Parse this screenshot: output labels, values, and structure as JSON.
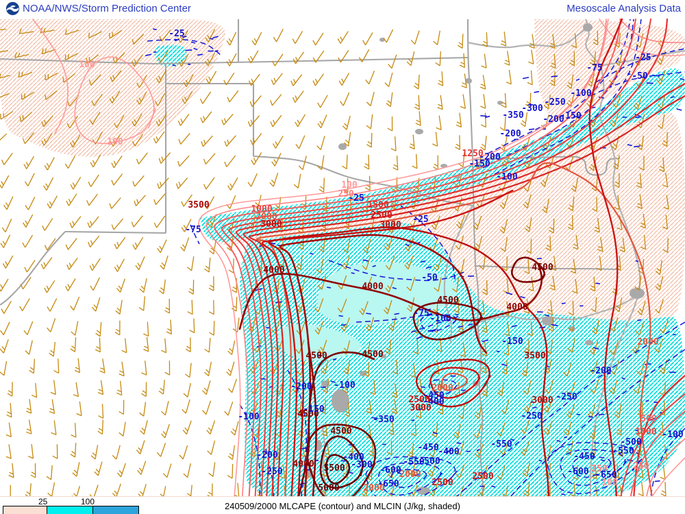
{
  "header": {
    "left_title": "NOAA/NWS/Storm Prediction Center",
    "right_title": "Mesoscale Analysis Data",
    "title_color": "#2b3cc0",
    "logo": "noaa-logo"
  },
  "footer": {
    "product_title": "240509/2000 MLCAPE (contour) and MLCIN (J/kg, shaded)",
    "legend": {
      "ticks": [
        "25",
        "100"
      ],
      "segment_colors": [
        "#fcdfd3",
        "#00f0f0",
        "#2da4dc"
      ]
    }
  },
  "map": {
    "colors": {
      "wind_barb": "#c6890f",
      "cin_line": "#1616d6",
      "cin_label": "#1414cc",
      "state_border": "#a6a6a6",
      "river": "#b3b3b3",
      "urban": "#a9a9a9",
      "shade_cyan_hatch": "#00dede",
      "shade_cyan_solid": "#b9f7f1",
      "shade_peach_hatch": "#f2c4b0",
      "cape_palette": {
        "100": "#ff9a9a",
        "250": "#ff8080",
        "500": "#f96060",
        "750": "#f24e4e",
        "1000": "#ec4040",
        "1250": "#e63434",
        "1500": "#e02c2c",
        "1750": "#da2424",
        "2000": "#e25840",
        "2500": "#cd1414",
        "3000": "#bc0c0c",
        "3500": "#a80505",
        "4000": "#930101",
        "4500": "#7d0000",
        "5000": "#6c0000",
        "5500": "#5e0000"
      }
    },
    "cape_labels": [
      [
        100,
        127,
        98
      ],
      [
        100,
        168,
        211
      ],
      [
        100,
        510,
        274
      ],
      [
        100,
        890,
        708
      ],
      [
        250,
        505,
        287
      ],
      [
        250,
        875,
        688
      ],
      [
        250,
        936,
        684
      ],
      [
        500,
        947,
        615
      ],
      [
        1000,
        943,
        634
      ],
      [
        1250,
        690,
        228
      ],
      [
        1500,
        552,
        303
      ],
      [
        1000,
        382,
        309
      ],
      [
        2000,
        389,
        320
      ],
      [
        3000,
        396,
        331
      ],
      [
        2000,
        646,
        570
      ],
      [
        2000,
        946,
        503
      ],
      [
        2000,
        599,
        696
      ],
      [
        2000,
        546,
        716
      ],
      [
        2500,
        557,
        318
      ],
      [
        2500,
        612,
        587
      ],
      [
        2500,
        646,
        708
      ],
      [
        2500,
        705,
        699
      ],
      [
        3000,
        570,
        332
      ],
      [
        3000,
        614,
        599
      ],
      [
        3000,
        792,
        588
      ],
      [
        3500,
        290,
        303
      ],
      [
        3500,
        781,
        523
      ],
      [
        4000,
        400,
        398
      ],
      [
        4000,
        544,
        422
      ],
      [
        4000,
        755,
        452
      ],
      [
        4000,
        443,
        681
      ],
      [
        4500,
        792,
        394
      ],
      [
        4500,
        654,
        442
      ],
      [
        4500,
        462,
        523
      ],
      [
        4500,
        544,
        521
      ],
      [
        4500,
        450,
        608
      ],
      [
        4500,
        498,
        633
      ],
      [
        5000,
        480,
        716
      ],
      [
        5500,
        488,
        687
      ]
    ],
    "cin_labels": [
      [
        -25,
        258,
        53
      ],
      [
        -25,
        939,
        88
      ],
      [
        -25,
        614,
        324
      ],
      [
        -25,
        520,
        293
      ],
      [
        -50,
        934,
        115
      ],
      [
        -50,
        627,
        409
      ],
      [
        -75,
        868,
        103
      ],
      [
        -75,
        282,
        339
      ],
      [
        -75,
        615,
        461
      ],
      [
        -100,
        848,
        140
      ],
      [
        -100,
        643,
        469
      ],
      [
        -100,
        363,
        612
      ],
      [
        -100,
        503,
        566
      ],
      [
        -100,
        982,
        638
      ],
      [
        -100,
        740,
        262
      ],
      [
        -150,
        833,
        173
      ],
      [
        -150,
        700,
        243
      ],
      [
        -150,
        748,
        502
      ],
      [
        -150,
        458,
        601
      ],
      [
        -200,
        808,
        178
      ],
      [
        -200,
        745,
        199
      ],
      [
        -200,
        715,
        233
      ],
      [
        -200,
        440,
        568
      ],
      [
        -200,
        390,
        668
      ],
      [
        -200,
        877,
        545
      ],
      [
        -250,
        810,
        153
      ],
      [
        -250,
        397,
        692
      ],
      [
        -250,
        776,
        611
      ],
      [
        -250,
        827,
        583
      ],
      [
        -300,
        777,
        162
      ],
      [
        -300,
        528,
        682
      ],
      [
        -350,
        749,
        172
      ],
      [
        -350,
        560,
        616
      ],
      [
        -400,
        516,
        671
      ],
      [
        -400,
        655,
        663
      ],
      [
        -400,
        633,
        590
      ],
      [
        -450,
        625,
        657
      ],
      [
        -450,
        633,
        581
      ],
      [
        -450,
        853,
        670
      ],
      [
        -500,
        627,
        677
      ],
      [
        -500,
        921,
        649
      ],
      [
        -550,
        604,
        678
      ],
      [
        -550,
        910,
        662
      ],
      [
        -550,
        732,
        652
      ],
      [
        -600,
        570,
        690
      ],
      [
        -600,
        844,
        692
      ],
      [
        -650,
        567,
        710
      ],
      [
        -650,
        885,
        697
      ]
    ]
  }
}
